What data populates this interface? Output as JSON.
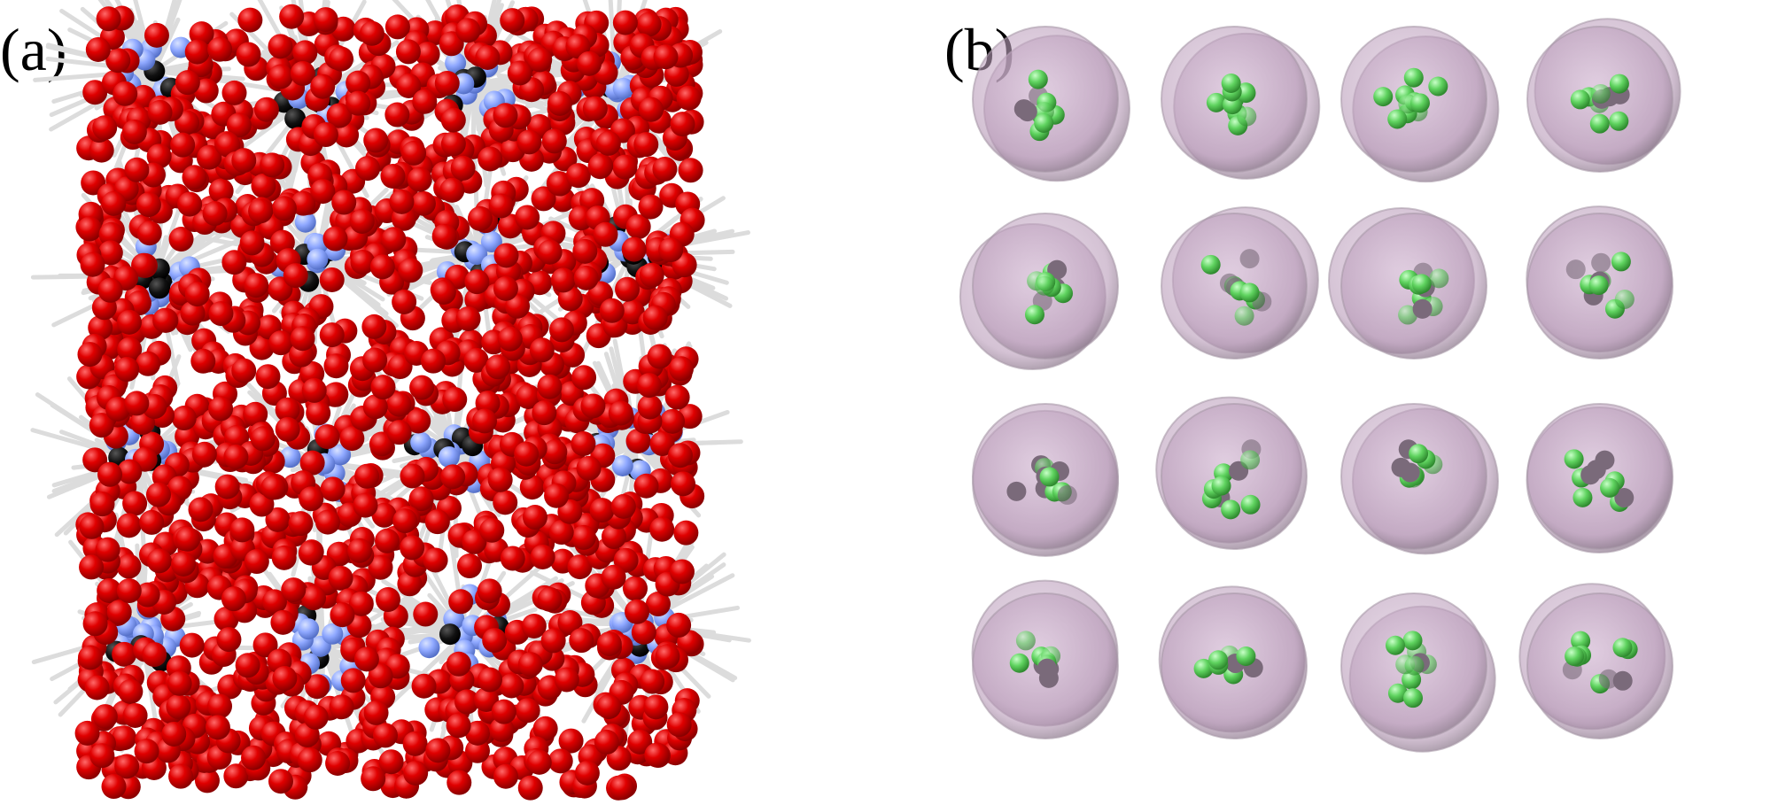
{
  "figure": {
    "panel_a": {
      "label": "(a)",
      "colors": {
        "outer_bead": "#e00000",
        "core_bead": "#8fa8ff",
        "junction_bead": "#000000",
        "bond": "#dcdcdc"
      }
    },
    "panel_b": {
      "label": "(b)",
      "colors": {
        "shell": "#c8a6c8",
        "core_bead": "#5fd35f"
      },
      "grid": {
        "rows": 4,
        "cols": 4
      }
    }
  }
}
